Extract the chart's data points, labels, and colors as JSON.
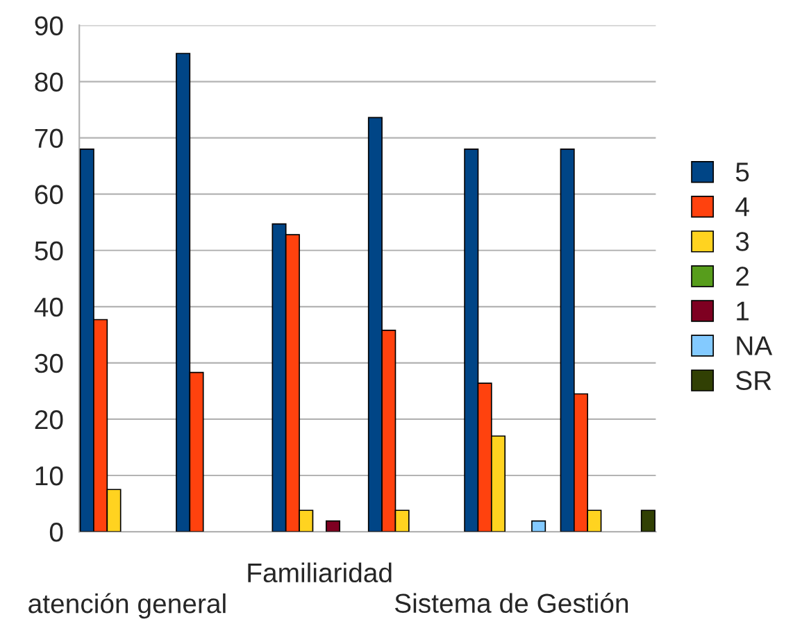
{
  "chart_data": {
    "type": "bar",
    "categories": [
      "atención general",
      null,
      "Familiaridad",
      null,
      "Sistema de Gestión",
      null
    ],
    "series": [
      {
        "name": "5",
        "color": "#004586",
        "values": [
          68,
          85,
          54.7,
          73.6,
          68,
          68
        ]
      },
      {
        "name": "4",
        "color": "#ff420e",
        "values": [
          37.7,
          28.3,
          52.8,
          35.8,
          26.4,
          24.5
        ]
      },
      {
        "name": "3",
        "color": "#ffd320",
        "values": [
          7.5,
          null,
          3.8,
          3.8,
          17,
          3.8
        ]
      },
      {
        "name": "2",
        "color": "#579d1c",
        "values": [
          null,
          null,
          null,
          null,
          null,
          null
        ]
      },
      {
        "name": "1",
        "color": "#7e0021",
        "values": [
          null,
          null,
          1.9,
          null,
          null,
          null
        ]
      },
      {
        "name": "NA",
        "color": "#83caff",
        "values": [
          null,
          null,
          null,
          null,
          1.9,
          null
        ]
      },
      {
        "name": "SR",
        "color": "#314004",
        "values": [
          null,
          null,
          null,
          null,
          null,
          3.8
        ]
      }
    ],
    "ylim": [
      0,
      90
    ],
    "yticks": [
      0,
      10,
      20,
      30,
      40,
      50,
      60,
      70,
      80,
      90
    ],
    "grid": "y",
    "legend": "right"
  }
}
